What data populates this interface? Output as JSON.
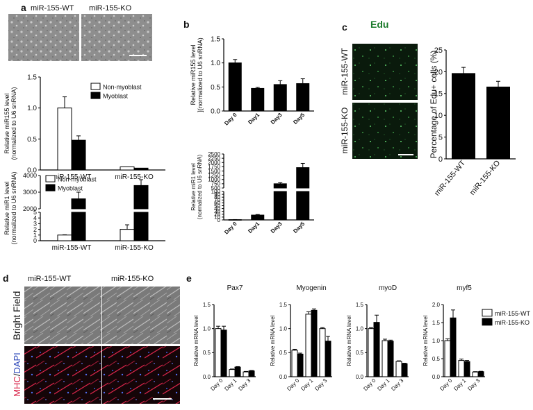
{
  "panel_letters": [
    "a",
    "b",
    "c",
    "d",
    "e"
  ],
  "panel_a": {
    "image_headers": [
      "miR-155-WT",
      "miR-155-KO"
    ]
  },
  "panel_c": {
    "stain_title": "Edu",
    "row_labels": [
      "miR-155-WT",
      "miR-155-KO"
    ]
  },
  "panel_d": {
    "col_headers": [
      "miR-155-WT",
      "miR-155-KO"
    ],
    "row_labels": [
      "Bright Field",
      "MHC",
      "/",
      "DAPI"
    ]
  },
  "colors": {
    "bar_black": "#000000",
    "bar_white": "#ffffff",
    "edu_green": "#1a7a2a",
    "mhc_red": "#d9254a",
    "dapi_blue": "#2b46b8"
  },
  "chart_data": [
    {
      "id": "a_top",
      "type": "bar",
      "ylabel": [
        "Relative miR155 level",
        "(normalized to U6 snRNA)"
      ],
      "categories": [
        "miR-155-WT",
        "miR-155-KO"
      ],
      "ylim": [
        0,
        1.5
      ],
      "yticks": [
        "0.0",
        "0.5",
        "1.0",
        "1.5"
      ],
      "ytick_values": [
        0,
        0.5,
        1,
        1.5
      ],
      "legend": {
        "placement": "top-right",
        "entries": [
          "Non-myoblast",
          "Myoblast"
        ]
      },
      "series": [
        {
          "name": "Non-myoblast",
          "color": "#ffffff",
          "values": [
            1.0,
            0.05
          ],
          "errors": [
            0.18,
            0.0
          ]
        },
        {
          "name": "Myoblast",
          "color": "#000000",
          "values": [
            0.48,
            0.03
          ],
          "errors": [
            0.07,
            0.0
          ]
        }
      ]
    },
    {
      "id": "a_bottom",
      "type": "bar",
      "broken_axis": true,
      "ylabel": [
        "Relative miR1 level",
        "(normalized to U6 snRNA)"
      ],
      "categories": [
        "miR-155-WT",
        "miR-155-KO"
      ],
      "upper_yticks": [
        "2000",
        "3000",
        "4000"
      ],
      "upper_ytick_values": [
        2000,
        3000,
        4000
      ],
      "lower_yticks": [
        "0",
        "1",
        "2",
        "3",
        "4",
        "5"
      ],
      "lower_ytick_values": [
        0,
        1,
        2,
        3,
        4,
        5
      ],
      "legend": {
        "placement": "top-left",
        "entries": [
          "Non-myoblast",
          "Myoblast"
        ]
      },
      "series": [
        {
          "name": "Non-myoblast",
          "color": "#ffffff",
          "values": [
            1.0,
            2.0
          ],
          "errors": [
            0.05,
            0.8
          ]
        },
        {
          "name": "Myoblast",
          "color": "#000000",
          "values": [
            2600,
            3400
          ],
          "errors": [
            400,
            350
          ]
        }
      ]
    },
    {
      "id": "b_top",
      "type": "bar",
      "ylabel": [
        "Relative miR155 level",
        "](normalized to U6 snRNA)"
      ],
      "categories": [
        "Day 0",
        "Day1",
        "Day3",
        "Day5"
      ],
      "ylim": [
        0,
        1.5
      ],
      "yticks": [
        "0.0",
        "0.5",
        "1.0",
        "1.5"
      ],
      "ytick_values": [
        0,
        0.5,
        1,
        1.5
      ],
      "series": [
        {
          "color": "#000000",
          "values": [
            1.0,
            0.47,
            0.55,
            0.57
          ],
          "errors": [
            0.07,
            0.02,
            0.08,
            0.1
          ]
        }
      ]
    },
    {
      "id": "b_bottom",
      "type": "bar",
      "broken_axis": true,
      "ylabel": [
        "Relative miR1 level",
        "(normalized to U6 snRNA)"
      ],
      "categories": [
        "Day 0",
        "Day1",
        "Day3",
        "Day5"
      ],
      "upper_yticks": [
        "500",
        "750",
        "1000",
        "1250",
        "1500",
        "1750",
        "2000",
        "2250",
        "2500"
      ],
      "upper_ytick_values": [
        500,
        750,
        1000,
        1250,
        1500,
        1750,
        2000,
        2250,
        2500
      ],
      "lower_yticks": [
        "0",
        "10",
        "20",
        "30",
        "40",
        "50",
        "60",
        "70",
        "80",
        "90",
        "100"
      ],
      "lower_ytick_values": [
        0,
        10,
        20,
        30,
        40,
        50,
        60,
        70,
        80,
        90,
        100
      ],
      "series": [
        {
          "color": "#000000",
          "values": [
            1,
            17,
            750,
            1700
          ],
          "errors": [
            0.3,
            2,
            60,
            250
          ]
        }
      ]
    },
    {
      "id": "c",
      "type": "bar",
      "ylabel": [
        "Percentage of Edu+ cells (%)"
      ],
      "categories": [
        "miR-155-WT",
        "miR-155-KO"
      ],
      "ylim": [
        0,
        25
      ],
      "yticks": [
        "0",
        "5",
        "10",
        "15",
        "20",
        "25"
      ],
      "ytick_values": [
        0,
        5,
        10,
        15,
        20,
        25
      ],
      "series": [
        {
          "color": "#000000",
          "values": [
            19.6,
            16.5
          ],
          "errors": [
            1.4,
            1.3
          ]
        }
      ]
    },
    {
      "id": "e_pax7",
      "type": "bar",
      "title": "Pax7",
      "ylabel": [
        "Relative mRNA level"
      ],
      "categories": [
        "Day 0",
        "Day 1",
        "Day 3"
      ],
      "ylim": [
        0,
        1.5
      ],
      "yticks": [
        "0.0",
        "0.5",
        "1.0",
        "1.5"
      ],
      "ytick_values": [
        0,
        0.5,
        1,
        1.5
      ],
      "series": [
        {
          "name": "miR-155-WT",
          "color": "#ffffff",
          "values": [
            1.0,
            0.15,
            0.1
          ],
          "errors": [
            0.05,
            0.01,
            0.01
          ]
        },
        {
          "name": "miR-155-KO",
          "color": "#000000",
          "values": [
            0.97,
            0.2,
            0.12
          ],
          "errors": [
            0.08,
            0.01,
            0.01
          ]
        }
      ]
    },
    {
      "id": "e_myogenin",
      "type": "bar",
      "title": "Myogenin",
      "ylabel": [
        "Relative mRNA level"
      ],
      "categories": [
        "Day 0",
        "Day 1",
        "Day 3"
      ],
      "ylim": [
        0,
        1.5
      ],
      "yticks": [
        "0.0",
        "0.5",
        "1.0",
        "1.5"
      ],
      "ytick_values": [
        0,
        0.5,
        1,
        1.5
      ],
      "series": [
        {
          "name": "miR-155-WT",
          "color": "#ffffff",
          "values": [
            0.55,
            1.3,
            1.0
          ],
          "errors": [
            0.02,
            0.05,
            0.02
          ]
        },
        {
          "name": "miR-155-KO",
          "color": "#000000",
          "values": [
            0.47,
            1.38,
            0.74
          ],
          "errors": [
            0.02,
            0.03,
            0.1
          ]
        }
      ]
    },
    {
      "id": "e_myod",
      "type": "bar",
      "title": "myoD",
      "ylabel": [
        "Relative mRNA level"
      ],
      "categories": [
        "Day 0",
        "Day 1",
        "Day 3"
      ],
      "ylim": [
        0,
        1.5
      ],
      "yticks": [
        "0.0",
        "0.5",
        "1.0",
        "1.5"
      ],
      "ytick_values": [
        0,
        0.5,
        1,
        1.5
      ],
      "series": [
        {
          "name": "miR-155-WT",
          "color": "#ffffff",
          "values": [
            1.0,
            0.75,
            0.32
          ],
          "errors": [
            0.02,
            0.03,
            0.01
          ]
        },
        {
          "name": "miR-155-KO",
          "color": "#000000",
          "values": [
            1.13,
            0.74,
            0.27
          ],
          "errors": [
            0.15,
            0.02,
            0.01
          ]
        }
      ]
    },
    {
      "id": "e_myf5",
      "type": "bar",
      "title": "myf5",
      "ylabel": [
        "Relative mRNA level"
      ],
      "categories": [
        "Day 0",
        "Day 1",
        "Day 3"
      ],
      "ylim": [
        0,
        2.0
      ],
      "yticks": [
        "0.0",
        "0.5",
        "1.0",
        "1.5",
        "2.0"
      ],
      "ytick_values": [
        0,
        0.5,
        1,
        1.5,
        2
      ],
      "legend": {
        "placement": "top-right",
        "entries": [
          "miR-155-WT",
          "miR-155-KO"
        ]
      },
      "series": [
        {
          "name": "miR-155-WT",
          "color": "#ffffff",
          "values": [
            1.0,
            0.45,
            0.13
          ],
          "errors": [
            0.05,
            0.04,
            0.01
          ]
        },
        {
          "name": "miR-155-KO",
          "color": "#000000",
          "values": [
            1.63,
            0.42,
            0.14
          ],
          "errors": [
            0.22,
            0.03,
            0.01
          ]
        }
      ]
    }
  ]
}
